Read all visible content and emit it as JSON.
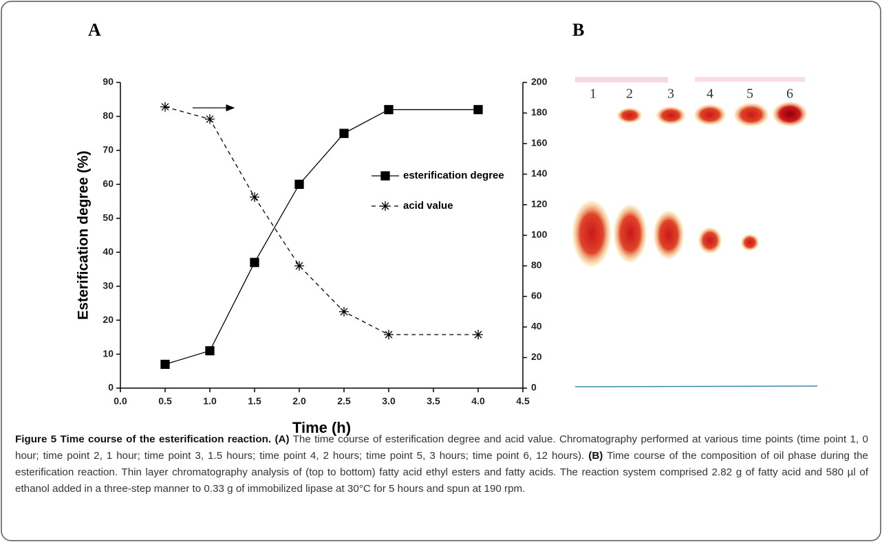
{
  "panel_labels": [
    "A",
    "B"
  ],
  "chart_data": {
    "type": "line",
    "xlabel": "Time (h)",
    "ylabel": "Esterification degree (%)",
    "x": [
      0.5,
      1.0,
      1.5,
      2.0,
      2.5,
      3.0,
      4.0
    ],
    "series": [
      {
        "name": "esterification degree",
        "color": "#000000",
        "marker": "square",
        "linestyle": "solid",
        "values": [
          7,
          11,
          37,
          60,
          75,
          82,
          82
        ]
      },
      {
        "name": "acid value",
        "color": "#000000",
        "marker": "star",
        "linestyle": "dashed",
        "axis": "y2",
        "values": [
          184,
          176,
          125,
          80,
          50,
          35,
          35
        ]
      }
    ],
    "xlim": [
      0,
      4.5
    ],
    "xticks": [
      {
        "value": 0,
        "label": "0.0"
      },
      {
        "value": 0.5,
        "label": "0.5"
      },
      {
        "value": 1,
        "label": "1.0"
      },
      {
        "value": 1.5,
        "label": "1.5"
      },
      {
        "value": 2,
        "label": "2.0"
      },
      {
        "value": 2.5,
        "label": "2.5"
      },
      {
        "value": 3,
        "label": "3.0"
      },
      {
        "value": 3.5,
        "label": "3.5"
      },
      {
        "value": 4,
        "label": "4.0"
      },
      {
        "value": 4.5,
        "label": "4.5"
      }
    ],
    "ylim": [
      0,
      90
    ],
    "yticks": [
      0,
      10,
      20,
      30,
      40,
      50,
      60,
      70,
      80,
      90
    ],
    "y2lim": [
      0,
      200
    ],
    "y2ticks": [
      0,
      20,
      40,
      60,
      80,
      100,
      120,
      140,
      160,
      180,
      200
    ],
    "legend": "center right",
    "grid": false
  },
  "tlc": {
    "lane_labels": [
      "1",
      "2",
      "3",
      "4",
      "5",
      "6"
    ]
  },
  "caption": {
    "title": "Figure 5 Time course of the esterification reaction.",
    "label_a": "(A)",
    "text_a": "The time course of esterification degree and acid value. Chromatography performed at various time points (time point 1, 0 hour; time point 2, 1 hour; time point 3, 1.5 hours; time point 4, 2 hours; time point 5, 3 hours; time point 6, 12 hours).",
    "label_b": "(B)",
    "text_b": "Time course of the composition of oil phase during the esterification reaction. Thin layer chromatography analysis of (top to bottom) fatty acid ethyl esters and fatty acids. The reaction system comprised 2.82 g of fatty acid and 580 µl of ethanol added in a three-step manner to 0.33 g of immobilized lipase at 30°C for 5 hours and spun at 190 rpm."
  }
}
